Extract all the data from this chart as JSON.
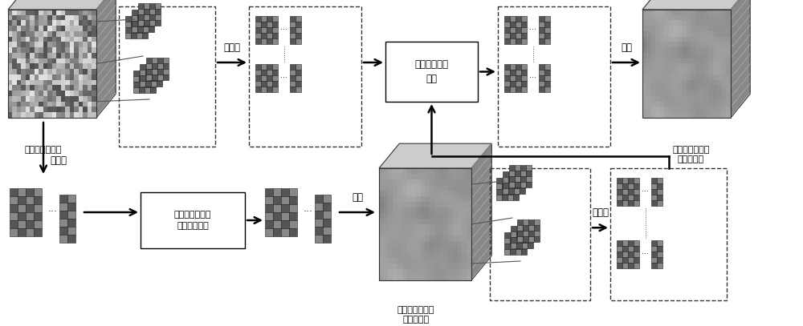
{
  "bg_color": "#ffffff",
  "fig_width": 10.0,
  "fig_height": 4.07,
  "colors": {
    "matrix_dark": "#555555",
    "matrix_light": "#888888",
    "matrix_border": "#222222",
    "box_fill": "#ffffff",
    "box_border": "#000000",
    "arrow_color": "#000000",
    "text_color": "#000000",
    "cube_front": "#909090",
    "cube_top": "#c0c0c0",
    "cube_right_stripe": "#707070"
  },
  "labels": {
    "degraded": "退化高光谱图像",
    "matrixify": "矩阵化",
    "adaptive": "自适应秩校正\n模型",
    "reconstruct": "重建",
    "final_clean": "最终估计的干净\n高光谱图像",
    "aug_lagrange": "非精确增广拉格\n朗日乘子算法",
    "initial_clean": "初始估计的干净\n高光谱图像"
  }
}
